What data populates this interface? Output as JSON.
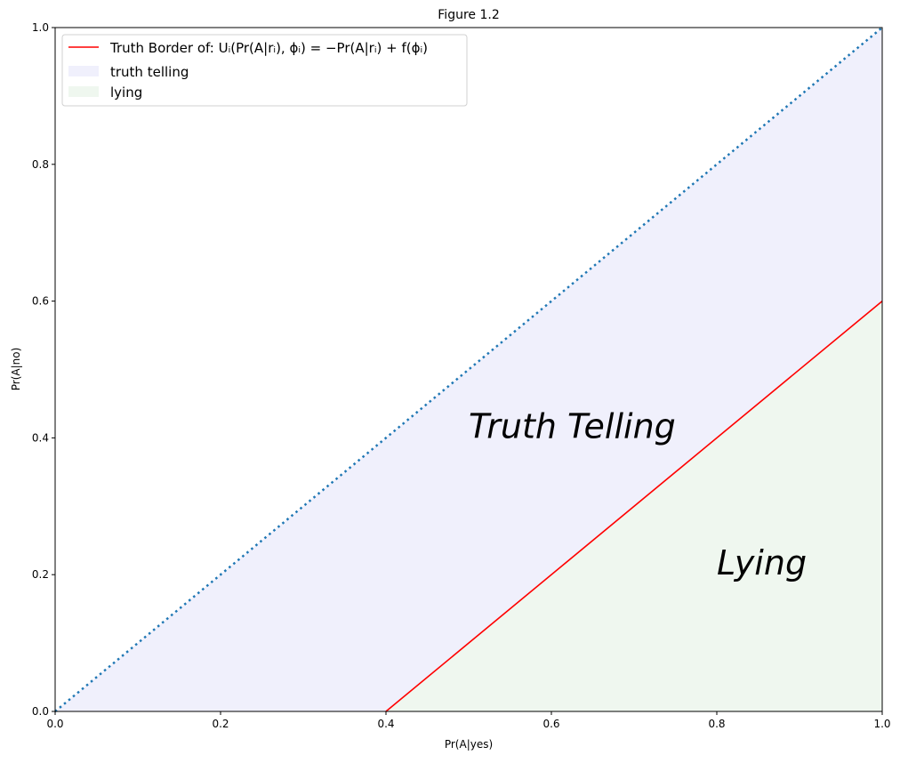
{
  "chart_data": {
    "type": "area",
    "title": "Figure 1.2",
    "xlabel": "Pr(A|yes)",
    "ylabel": "Pr(A|no)",
    "xlim": [
      0,
      1
    ],
    "ylim": [
      0,
      1
    ],
    "xticks": [
      "0.0",
      "0.2",
      "0.4",
      "0.6",
      "0.8",
      "1.0"
    ],
    "yticks": [
      "0.0",
      "0.2",
      "0.4",
      "0.6",
      "0.8",
      "1.0"
    ],
    "grid": false,
    "legend_position": "top-left",
    "series": [
      {
        "name": "Truth Border of: Uᵢ(Pr(A|rᵢ), ϕᵢ) = −Pr(A|rᵢ) + f(ϕᵢ)",
        "kind": "line",
        "color": "#ff0000",
        "x": [
          0.4,
          1.0
        ],
        "y": [
          0.0,
          0.6
        ]
      },
      {
        "kind": "dotted-line",
        "color": "#1f77b4",
        "x": [
          0.0,
          1.0
        ],
        "y": [
          0.0,
          1.0
        ]
      },
      {
        "name": "truth telling",
        "kind": "fill",
        "color": "#f0f0fc",
        "x": [
          0.0,
          1.0,
          1.0,
          0.4
        ],
        "y": [
          0.0,
          1.0,
          0.6,
          0.0
        ]
      },
      {
        "name": "lying",
        "kind": "fill",
        "color": "#eff7ef",
        "x": [
          0.4,
          1.0,
          1.0
        ],
        "y": [
          0.0,
          0.6,
          0.0
        ]
      }
    ],
    "annotations": [
      {
        "text": "Truth Telling",
        "x": 0.5,
        "y": 0.4
      },
      {
        "text": "Lying",
        "x": 0.8,
        "y": 0.2
      }
    ]
  }
}
